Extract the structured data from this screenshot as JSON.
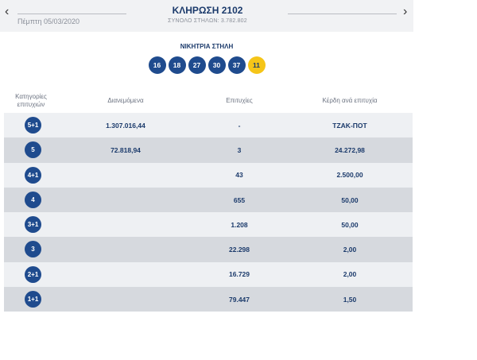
{
  "header": {
    "prev_icon": "chevron-left-icon",
    "next_icon": "chevron-right-icon",
    "prev_glyph": "‹",
    "next_glyph": "›",
    "date": "Πέμπτη 05/03/2020",
    "title": "ΚΛΗΡΩΣΗ 2102",
    "subtitle": "ΣΥΝΟΛΟ ΣΤΗΛΩΝ: 3.782.802"
  },
  "winning": {
    "label": "ΝΙΚΗΤΡΙΑ ΣΤΗΛΗ",
    "numbers": [
      "16",
      "18",
      "27",
      "30",
      "37"
    ],
    "bonus": "11"
  },
  "table": {
    "headers": {
      "category_line1": "Κατηγορίες",
      "category_line2": "επιτυχιών",
      "distributed": "Διανεμόμενα",
      "winners": "Επιτυχίες",
      "prize": "Κέρδη ανά επιτυχία"
    },
    "rows": [
      {
        "category": "5+1",
        "distributed": "1.307.016,44",
        "winners": "-",
        "prize": "ΤΖΑΚ-ΠΟΤ"
      },
      {
        "category": "5",
        "distributed": "72.818,94",
        "winners": "3",
        "prize": "24.272,98"
      },
      {
        "category": "4+1",
        "distributed": "",
        "winners": "43",
        "prize": "2.500,00"
      },
      {
        "category": "4",
        "distributed": "",
        "winners": "655",
        "prize": "50,00"
      },
      {
        "category": "3+1",
        "distributed": "",
        "winners": "1.208",
        "prize": "50,00"
      },
      {
        "category": "3",
        "distributed": "",
        "winners": "22.298",
        "prize": "2,00"
      },
      {
        "category": "2+1",
        "distributed": "",
        "winners": "16.729",
        "prize": "2,00"
      },
      {
        "category": "1+1",
        "distributed": "",
        "winners": "79.447",
        "prize": "1,50"
      }
    ]
  },
  "colors": {
    "primary": "#1f4b8e",
    "bonus": "#f5c518",
    "row_light": "#eef0f3",
    "row_dark": "#d6d9de"
  }
}
